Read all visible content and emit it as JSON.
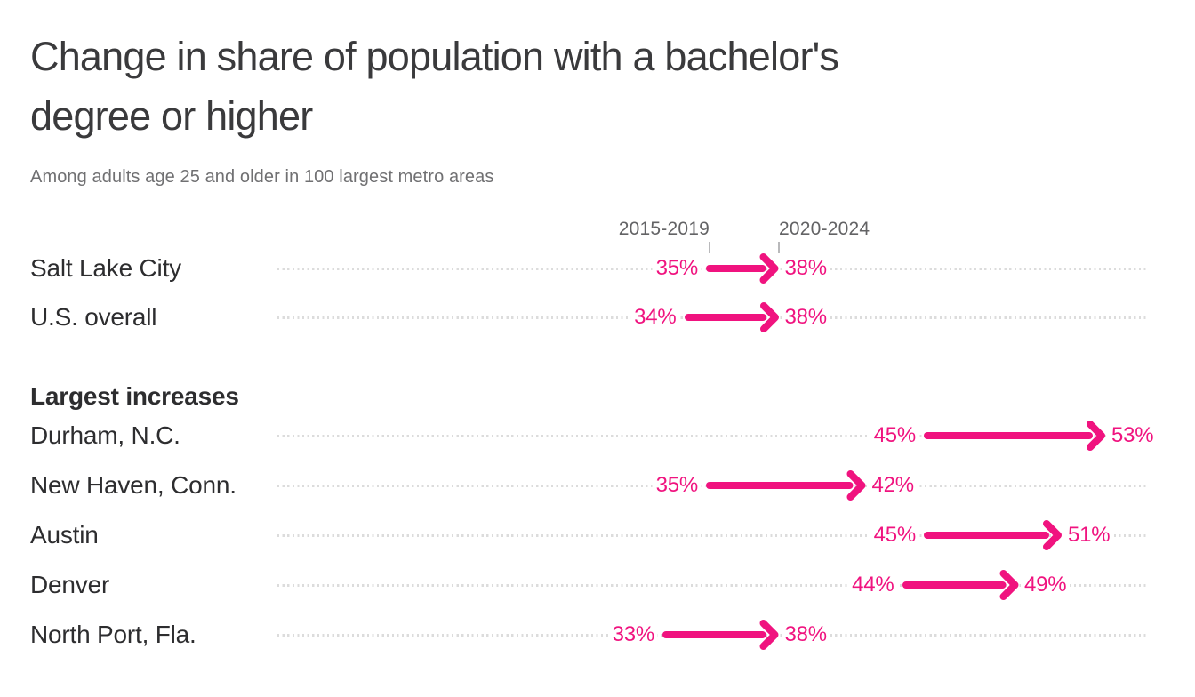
{
  "page": {
    "background": "#ffffff"
  },
  "header": {
    "title_line1": "Change in share of population with a bachelor's",
    "title_line2": "degree or higher"
  },
  "colors": {
    "accent_pink": "#f0137f",
    "title_text": "#3a3a3c",
    "row_label_text": "#2d2d2f",
    "subtitle_text": "#707072",
    "column_header_text": "#636365",
    "dotted_line": "#dcdcdc",
    "tick_mark": "#b9b9bb",
    "background": "#ffffff"
  },
  "chart_data": {
    "type": "arrow",
    "title": "Change in share of population with a bachelor's degree or higher",
    "subtitle": "Among adults age 25 and older in 100 largest metro areas",
    "columns": [
      "2015-2019",
      "2020-2024"
    ],
    "value_unit": "%",
    "x_range": [
      33,
      53
    ],
    "arrow_color": "#f0137f",
    "grid": "dotted-row-lines",
    "groups": [
      {
        "label": "",
        "rows": [
          {
            "label": "Salt Lake City",
            "start": 35,
            "end": 38
          },
          {
            "label": "U.S. overall",
            "start": 34,
            "end": 38
          }
        ]
      },
      {
        "label": "Largest increases",
        "rows": [
          {
            "label": "Durham, N.C.",
            "start": 45,
            "end": 53
          },
          {
            "label": "New Haven, Conn.",
            "start": 35,
            "end": 42
          },
          {
            "label": "Austin",
            "start": 45,
            "end": 51
          },
          {
            "label": "Denver",
            "start": 44,
            "end": 49
          },
          {
            "label": "North Port, Fla.",
            "start": 33,
            "end": 38
          }
        ]
      }
    ]
  }
}
